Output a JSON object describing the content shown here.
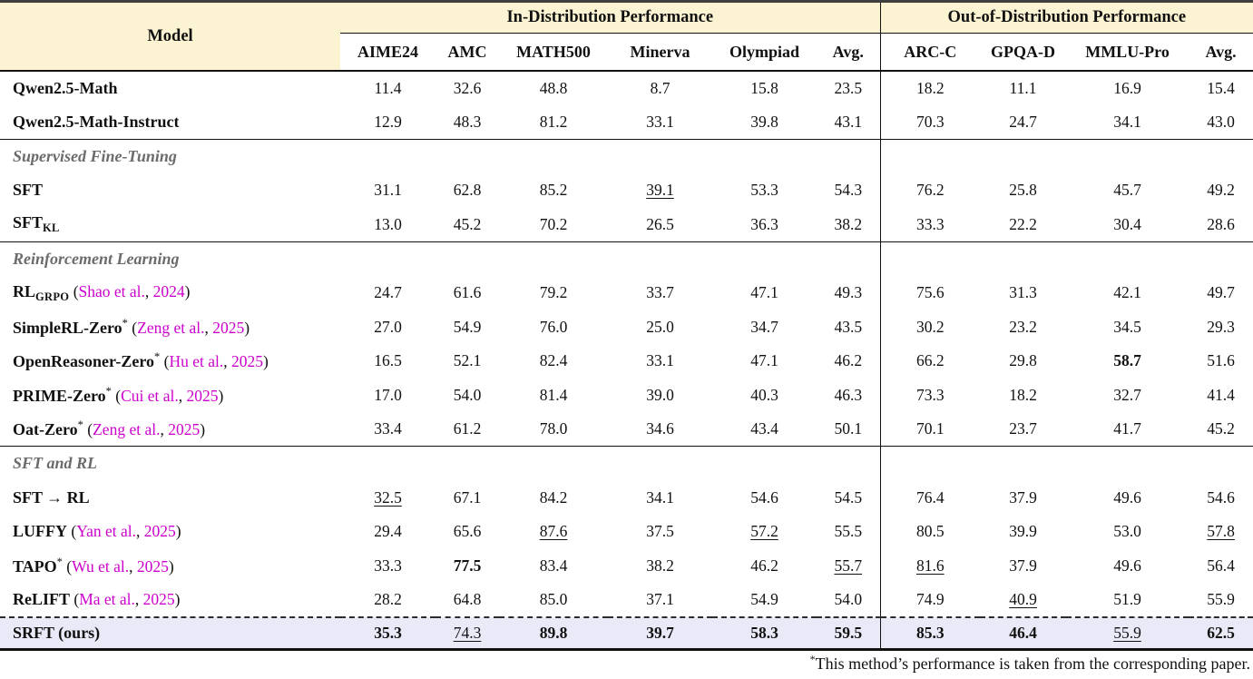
{
  "colors": {
    "header_band": "#fcf3d2",
    "highlight_row": "#e9e9f8",
    "citation": "#cc00cc",
    "section_label": "#6b6b6b"
  },
  "table": {
    "model_header": "Model",
    "group_headers": [
      {
        "label": "In-Distribution Performance",
        "span": 6
      },
      {
        "label": "Out-of-Distribution Performance",
        "span": 4
      }
    ],
    "columns": [
      "AIME24",
      "AMC",
      "MATH500",
      "Minerva",
      "Olympiad",
      "Avg.",
      "ARC-C",
      "GPQA-D",
      "MMLU-Pro",
      "Avg."
    ],
    "rows": [
      {
        "kind": "data",
        "label": "Qwen2.5-Math",
        "cells": [
          {
            "v": "11.4"
          },
          {
            "v": "32.6"
          },
          {
            "v": "48.8"
          },
          {
            "v": "8.7"
          },
          {
            "v": "15.8"
          },
          {
            "v": "23.5"
          },
          {
            "v": "18.2"
          },
          {
            "v": "11.1"
          },
          {
            "v": "16.9"
          },
          {
            "v": "15.4"
          }
        ]
      },
      {
        "kind": "data",
        "label": "Qwen2.5-Math-Instruct",
        "rule": "solid",
        "cells": [
          {
            "v": "12.9"
          },
          {
            "v": "48.3"
          },
          {
            "v": "81.2"
          },
          {
            "v": "33.1"
          },
          {
            "v": "39.8"
          },
          {
            "v": "43.1"
          },
          {
            "v": "70.3"
          },
          {
            "v": "24.7"
          },
          {
            "v": "34.1"
          },
          {
            "v": "43.0"
          }
        ]
      },
      {
        "kind": "section",
        "label": "Supervised Fine-Tuning"
      },
      {
        "kind": "data",
        "label": "SFT",
        "cells": [
          {
            "v": "31.1"
          },
          {
            "v": "62.8"
          },
          {
            "v": "85.2"
          },
          {
            "v": "39.1",
            "s": "u"
          },
          {
            "v": "53.3"
          },
          {
            "v": "54.3"
          },
          {
            "v": "76.2"
          },
          {
            "v": "25.8"
          },
          {
            "v": "45.7"
          },
          {
            "v": "49.2"
          }
        ]
      },
      {
        "kind": "data",
        "label": "SFT",
        "sub": "KL",
        "rule": "solid",
        "cells": [
          {
            "v": "13.0"
          },
          {
            "v": "45.2"
          },
          {
            "v": "70.2"
          },
          {
            "v": "26.5"
          },
          {
            "v": "36.3"
          },
          {
            "v": "38.2"
          },
          {
            "v": "33.3"
          },
          {
            "v": "22.2"
          },
          {
            "v": "30.4"
          },
          {
            "v": "28.6"
          }
        ]
      },
      {
        "kind": "section",
        "label": "Reinforcement Learning"
      },
      {
        "kind": "data",
        "label": "RL",
        "sub": "GRPO",
        "cite": {
          "author": "Shao et al.",
          "year": "2024"
        },
        "cells": [
          {
            "v": "24.7"
          },
          {
            "v": "61.6"
          },
          {
            "v": "79.2"
          },
          {
            "v": "33.7"
          },
          {
            "v": "47.1"
          },
          {
            "v": "49.3"
          },
          {
            "v": "75.6"
          },
          {
            "v": "31.3"
          },
          {
            "v": "42.1"
          },
          {
            "v": "49.7"
          }
        ]
      },
      {
        "kind": "data",
        "label": "SimpleRL-Zero",
        "star": true,
        "cite": {
          "author": "Zeng et al.",
          "year": "2025"
        },
        "cells": [
          {
            "v": "27.0"
          },
          {
            "v": "54.9"
          },
          {
            "v": "76.0"
          },
          {
            "v": "25.0"
          },
          {
            "v": "34.7"
          },
          {
            "v": "43.5"
          },
          {
            "v": "30.2"
          },
          {
            "v": "23.2"
          },
          {
            "v": "34.5"
          },
          {
            "v": "29.3"
          }
        ]
      },
      {
        "kind": "data",
        "label": "OpenReasoner-Zero",
        "star": true,
        "cite": {
          "author": "Hu et al.",
          "year": "2025"
        },
        "cells": [
          {
            "v": "16.5"
          },
          {
            "v": "52.1"
          },
          {
            "v": "82.4"
          },
          {
            "v": "33.1"
          },
          {
            "v": "47.1"
          },
          {
            "v": "46.2"
          },
          {
            "v": "66.2"
          },
          {
            "v": "29.8"
          },
          {
            "v": "58.7",
            "s": "b"
          },
          {
            "v": "51.6"
          }
        ]
      },
      {
        "kind": "data",
        "label": "PRIME-Zero",
        "star": true,
        "cite": {
          "author": "Cui et al.",
          "year": "2025"
        },
        "cells": [
          {
            "v": "17.0"
          },
          {
            "v": "54.0"
          },
          {
            "v": "81.4"
          },
          {
            "v": "39.0"
          },
          {
            "v": "40.3"
          },
          {
            "v": "46.3"
          },
          {
            "v": "73.3"
          },
          {
            "v": "18.2"
          },
          {
            "v": "32.7"
          },
          {
            "v": "41.4"
          }
        ]
      },
      {
        "kind": "data",
        "label": "Oat-Zero",
        "star": true,
        "cite": {
          "author": "Zeng et al.",
          "year": "2025"
        },
        "rule": "solid",
        "cells": [
          {
            "v": "33.4"
          },
          {
            "v": "61.2"
          },
          {
            "v": "78.0"
          },
          {
            "v": "34.6"
          },
          {
            "v": "43.4"
          },
          {
            "v": "50.1"
          },
          {
            "v": "70.1"
          },
          {
            "v": "23.7"
          },
          {
            "v": "41.7"
          },
          {
            "v": "45.2"
          }
        ]
      },
      {
        "kind": "section",
        "label": "SFT and RL"
      },
      {
        "kind": "data",
        "label": "SFT → RL",
        "cells": [
          {
            "v": "32.5",
            "s": "u"
          },
          {
            "v": "67.1"
          },
          {
            "v": "84.2"
          },
          {
            "v": "34.1"
          },
          {
            "v": "54.6"
          },
          {
            "v": "54.5"
          },
          {
            "v": "76.4"
          },
          {
            "v": "37.9"
          },
          {
            "v": "49.6"
          },
          {
            "v": "54.6"
          }
        ]
      },
      {
        "kind": "data",
        "label": "LUFFY",
        "cite": {
          "author": "Yan et al.",
          "year": "2025"
        },
        "cells": [
          {
            "v": "29.4"
          },
          {
            "v": "65.6"
          },
          {
            "v": "87.6",
            "s": "u"
          },
          {
            "v": "37.5"
          },
          {
            "v": "57.2",
            "s": "u"
          },
          {
            "v": "55.5"
          },
          {
            "v": "80.5"
          },
          {
            "v": "39.9"
          },
          {
            "v": "53.0"
          },
          {
            "v": "57.8",
            "s": "u"
          }
        ]
      },
      {
        "kind": "data",
        "label": "TAPO",
        "star": true,
        "cite": {
          "author": "Wu et al.",
          "year": "2025"
        },
        "cells": [
          {
            "v": "33.3"
          },
          {
            "v": "77.5",
            "s": "b"
          },
          {
            "v": "83.4"
          },
          {
            "v": "38.2"
          },
          {
            "v": "46.2"
          },
          {
            "v": "55.7",
            "s": "u"
          },
          {
            "v": "81.6",
            "s": "u"
          },
          {
            "v": "37.9"
          },
          {
            "v": "49.6"
          },
          {
            "v": "56.4"
          }
        ]
      },
      {
        "kind": "data",
        "label": "ReLIFT",
        "cite": {
          "author": "Ma et al.",
          "year": "2025"
        },
        "rule": "dashed",
        "cells": [
          {
            "v": "28.2"
          },
          {
            "v": "64.8"
          },
          {
            "v": "85.0"
          },
          {
            "v": "37.1"
          },
          {
            "v": "54.9"
          },
          {
            "v": "54.0"
          },
          {
            "v": "74.9"
          },
          {
            "v": "40.9",
            "s": "u"
          },
          {
            "v": "51.9"
          },
          {
            "v": "55.9"
          }
        ]
      },
      {
        "kind": "data",
        "label": "SRFT (ours)",
        "highlight": true,
        "cells": [
          {
            "v": "35.3",
            "s": "b"
          },
          {
            "v": "74.3",
            "s": "u"
          },
          {
            "v": "89.8",
            "s": "b"
          },
          {
            "v": "39.7",
            "s": "b"
          },
          {
            "v": "58.3",
            "s": "b"
          },
          {
            "v": "59.5",
            "s": "b"
          },
          {
            "v": "85.3",
            "s": "b"
          },
          {
            "v": "46.4",
            "s": "b"
          },
          {
            "v": "55.9",
            "s": "u"
          },
          {
            "v": "62.5",
            "s": "b"
          }
        ]
      }
    ],
    "footnote": {
      "marker": "*",
      "text": "This method’s performance is taken from the corresponding paper."
    }
  }
}
